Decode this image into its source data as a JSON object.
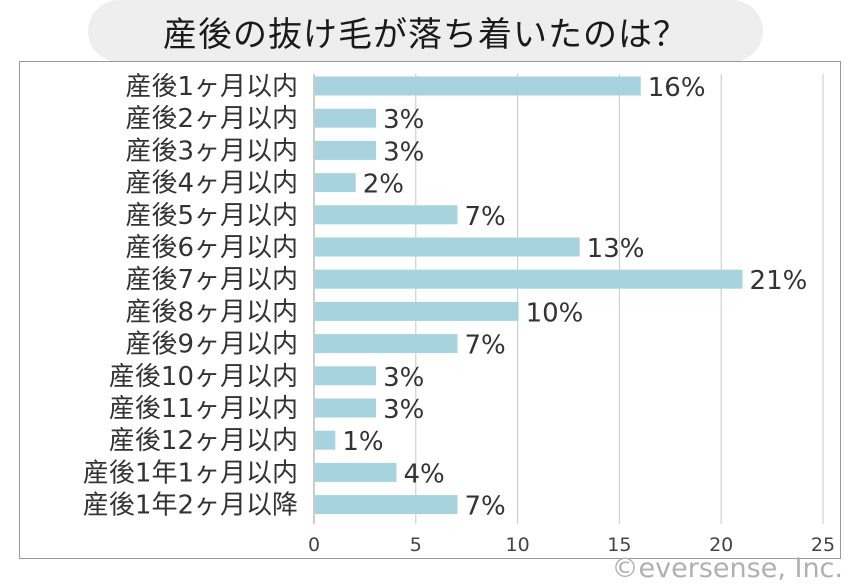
{
  "title": "産後の抜け毛が落ち着いたのは？",
  "copyright": "©eversense, Inc.",
  "colors": {
    "bar": "#a7d3df",
    "grid": "#c8c8c8",
    "text": "#333333"
  },
  "chart_data": {
    "type": "bar",
    "orientation": "horizontal",
    "categories": [
      "産後1ヶ月以内",
      "産後2ヶ月以内",
      "産後3ヶ月以内",
      "産後4ヶ月以内",
      "産後5ヶ月以内",
      "産後6ヶ月以内",
      "産後7ヶ月以内",
      "産後8ヶ月以内",
      "産後9ヶ月以内",
      "産後10ヶ月以内",
      "産後11ヶ月以内",
      "産後12ヶ月以内",
      "産後1年1ヶ月以内",
      "産後1年2ヶ月以降"
    ],
    "values": [
      16,
      3,
      3,
      2,
      7,
      13,
      21,
      10,
      7,
      3,
      3,
      1,
      4,
      7
    ],
    "data_labels": [
      "16%",
      "3%",
      "3%",
      "2%",
      "7%",
      "13%",
      "21%",
      "10%",
      "7%",
      "3%",
      "3%",
      "1%",
      "4%",
      "7%"
    ],
    "xlim": [
      0,
      25
    ],
    "xticks": [
      0,
      5,
      10,
      15,
      20,
      25
    ],
    "grid": "vertical",
    "legend": "none"
  }
}
